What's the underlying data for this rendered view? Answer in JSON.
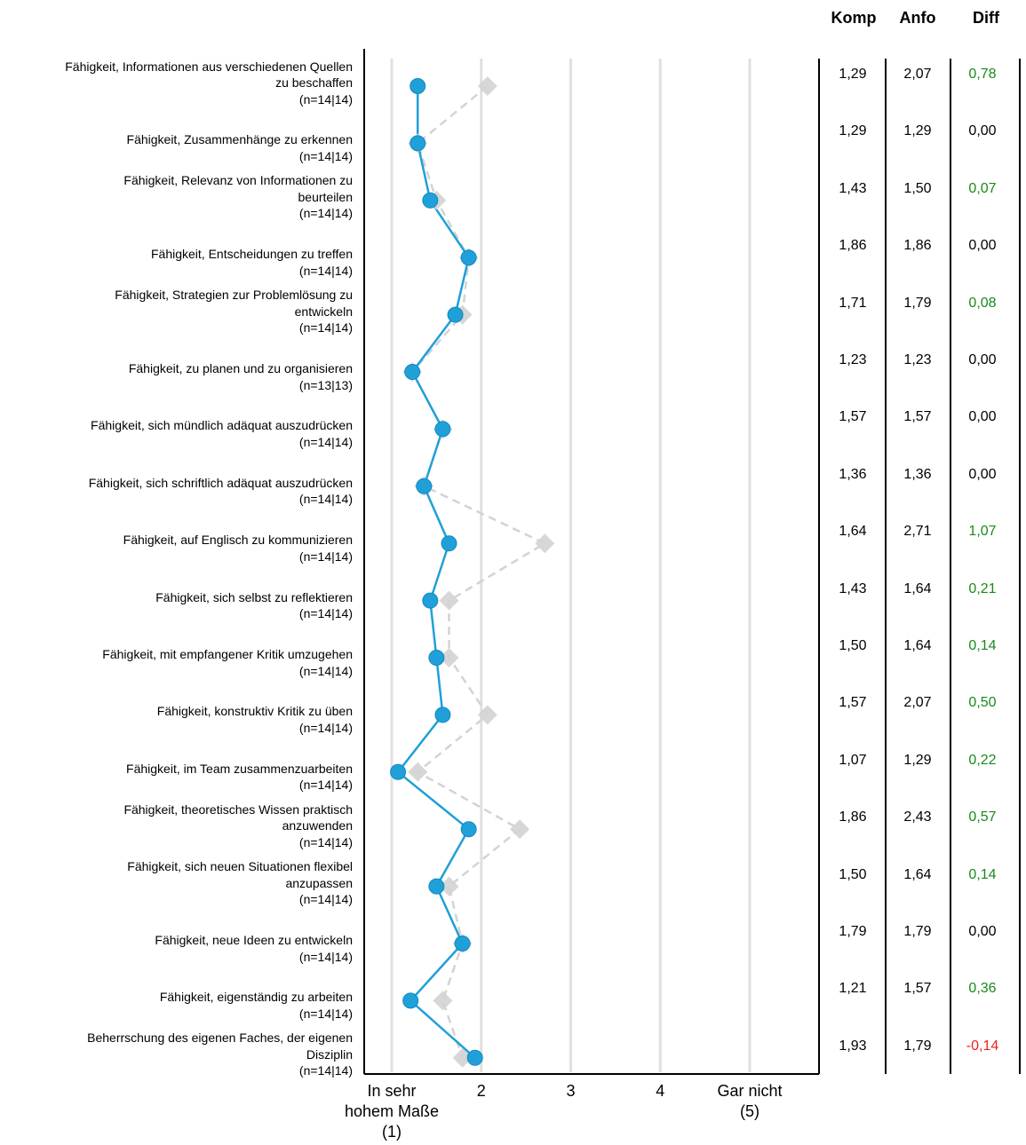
{
  "headers": {
    "komp": "Komp",
    "anfo": "Anfo",
    "diff": "Diff"
  },
  "colors": {
    "komp": "#1fa0d8",
    "anfo": "#d3d3d3",
    "positive": "#1a8a1a",
    "negative": "#e8231e",
    "neutral": "#000000",
    "grid": "#e0e0e0"
  },
  "chart_data": {
    "type": "line",
    "orientation": "horizontal-profile",
    "xlim": [
      1,
      5
    ],
    "x_ticks": [
      {
        "value": 1,
        "label": [
          "In sehr",
          "hohem Maße",
          "(1)"
        ]
      },
      {
        "value": 2,
        "label": [
          "2"
        ]
      },
      {
        "value": 3,
        "label": [
          "3"
        ]
      },
      {
        "value": 4,
        "label": [
          "4"
        ]
      },
      {
        "value": 5,
        "label": [
          "Gar nicht",
          "(5)"
        ]
      }
    ],
    "items": [
      {
        "label": [
          "Fähigkeit, Informationen aus verschiedenen Quellen",
          "zu beschaffen",
          "(n=14|14)"
        ],
        "komp": 1.29,
        "anfo": 2.07,
        "komp_text": "1,29",
        "anfo_text": "2,07",
        "diff_text": "0,78",
        "diff": 0.78
      },
      {
        "label": [
          "Fähigkeit, Zusammenhänge zu erkennen",
          "(n=14|14)"
        ],
        "komp": 1.29,
        "anfo": 1.29,
        "komp_text": "1,29",
        "anfo_text": "1,29",
        "diff_text": "0,00",
        "diff": 0.0
      },
      {
        "label": [
          "Fähigkeit, Relevanz von Informationen zu",
          "beurteilen",
          "(n=14|14)"
        ],
        "komp": 1.43,
        "anfo": 1.5,
        "komp_text": "1,43",
        "anfo_text": "1,50",
        "diff_text": "0,07",
        "diff": 0.07
      },
      {
        "label": [
          "Fähigkeit, Entscheidungen zu treffen",
          "(n=14|14)"
        ],
        "komp": 1.86,
        "anfo": 1.86,
        "komp_text": "1,86",
        "anfo_text": "1,86",
        "diff_text": "0,00",
        "diff": 0.0
      },
      {
        "label": [
          "Fähigkeit, Strategien zur Problemlösung zu",
          "entwickeln",
          "(n=14|14)"
        ],
        "komp": 1.71,
        "anfo": 1.79,
        "komp_text": "1,71",
        "anfo_text": "1,79",
        "diff_text": "0,08",
        "diff": 0.08
      },
      {
        "label": [
          "Fähigkeit, zu planen und zu organisieren",
          "(n=13|13)"
        ],
        "komp": 1.23,
        "anfo": 1.23,
        "komp_text": "1,23",
        "anfo_text": "1,23",
        "diff_text": "0,00",
        "diff": 0.0
      },
      {
        "label": [
          "Fähigkeit, sich mündlich adäquat auszudrücken",
          "(n=14|14)"
        ],
        "komp": 1.57,
        "anfo": 1.57,
        "komp_text": "1,57",
        "anfo_text": "1,57",
        "diff_text": "0,00",
        "diff": 0.0
      },
      {
        "label": [
          "Fähigkeit, sich schriftlich adäquat auszudrücken",
          "(n=14|14)"
        ],
        "komp": 1.36,
        "anfo": 1.36,
        "komp_text": "1,36",
        "anfo_text": "1,36",
        "diff_text": "0,00",
        "diff": 0.0
      },
      {
        "label": [
          "Fähigkeit, auf Englisch zu kommunizieren",
          "(n=14|14)"
        ],
        "komp": 1.64,
        "anfo": 2.71,
        "komp_text": "1,64",
        "anfo_text": "2,71",
        "diff_text": "1,07",
        "diff": 1.07
      },
      {
        "label": [
          "Fähigkeit, sich selbst zu reflektieren",
          "(n=14|14)"
        ],
        "komp": 1.43,
        "anfo": 1.64,
        "komp_text": "1,43",
        "anfo_text": "1,64",
        "diff_text": "0,21",
        "diff": 0.21
      },
      {
        "label": [
          "Fähigkeit, mit empfangener Kritik umzugehen",
          "(n=14|14)"
        ],
        "komp": 1.5,
        "anfo": 1.64,
        "komp_text": "1,50",
        "anfo_text": "1,64",
        "diff_text": "0,14",
        "diff": 0.14
      },
      {
        "label": [
          "Fähigkeit, konstruktiv Kritik zu üben",
          "(n=14|14)"
        ],
        "komp": 1.57,
        "anfo": 2.07,
        "komp_text": "1,57",
        "anfo_text": "2,07",
        "diff_text": "0,50",
        "diff": 0.5
      },
      {
        "label": [
          "Fähigkeit, im Team zusammenzuarbeiten",
          "(n=14|14)"
        ],
        "komp": 1.07,
        "anfo": 1.29,
        "komp_text": "1,07",
        "anfo_text": "1,29",
        "diff_text": "0,22",
        "diff": 0.22
      },
      {
        "label": [
          "Fähigkeit, theoretisches Wissen praktisch",
          "anzuwenden",
          "(n=14|14)"
        ],
        "komp": 1.86,
        "anfo": 2.43,
        "komp_text": "1,86",
        "anfo_text": "2,43",
        "diff_text": "0,57",
        "diff": 0.57
      },
      {
        "label": [
          "Fähigkeit, sich neuen Situationen flexibel",
          "anzupassen",
          "(n=14|14)"
        ],
        "komp": 1.5,
        "anfo": 1.64,
        "komp_text": "1,50",
        "anfo_text": "1,64",
        "diff_text": "0,14",
        "diff": 0.14
      },
      {
        "label": [
          "Fähigkeit, neue Ideen zu entwickeln",
          "(n=14|14)"
        ],
        "komp": 1.79,
        "anfo": 1.79,
        "komp_text": "1,79",
        "anfo_text": "1,79",
        "diff_text": "0,00",
        "diff": 0.0
      },
      {
        "label": [
          "Fähigkeit, eigenständig zu arbeiten",
          "(n=14|14)"
        ],
        "komp": 1.21,
        "anfo": 1.57,
        "komp_text": "1,21",
        "anfo_text": "1,57",
        "diff_text": "0,36",
        "diff": 0.36
      },
      {
        "label": [
          "Beherrschung des eigenen Faches, der eigenen",
          "Disziplin",
          "(n=14|14)"
        ],
        "komp": 1.93,
        "anfo": 1.79,
        "komp_text": "1,93",
        "anfo_text": "1,79",
        "diff_text": "-0,14",
        "diff": -0.14
      }
    ]
  }
}
